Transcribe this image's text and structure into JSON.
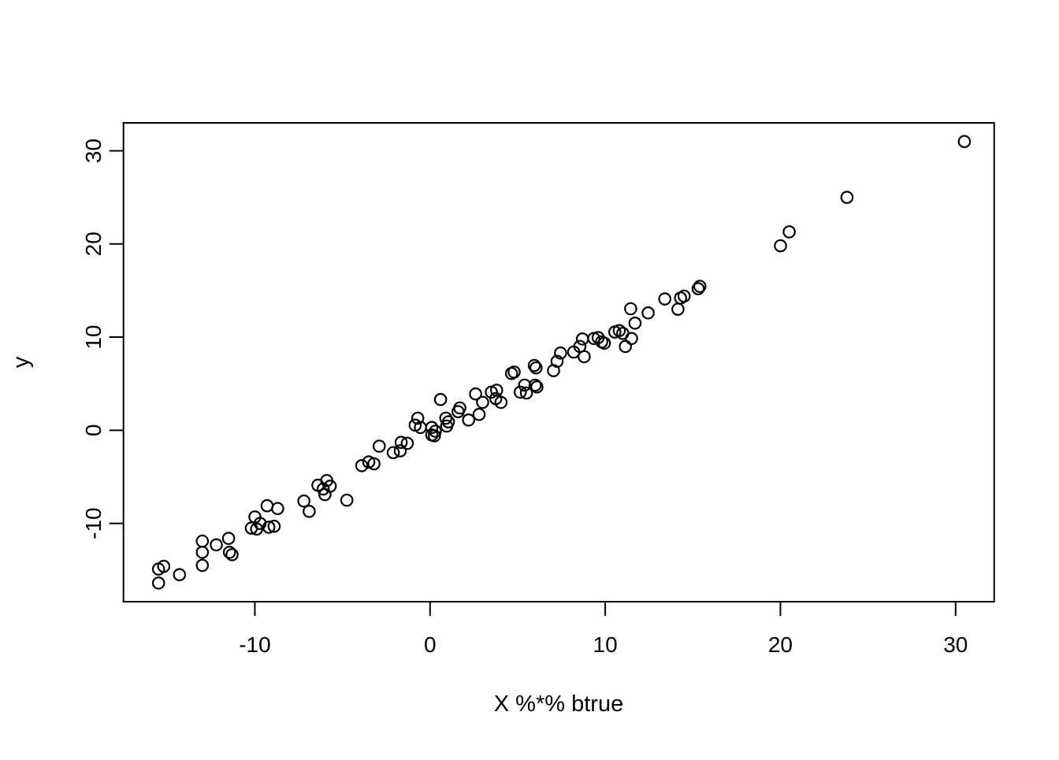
{
  "figure": {
    "background": "#ffffff",
    "axis_color": "#000000",
    "point_color": "#000000"
  },
  "chart_data": {
    "type": "scatter",
    "title": "",
    "xlabel": "X %*% btrue",
    "ylabel": "y",
    "marker": "open-circle",
    "grid": false,
    "legend": false,
    "xlim": [
      -17.5,
      32.2
    ],
    "ylim": [
      -18.4,
      33.0
    ],
    "x_ticks": [
      -10,
      0,
      10,
      20,
      30
    ],
    "y_ticks": [
      -10,
      0,
      10,
      20,
      30
    ],
    "points": [
      [
        -15.5,
        -14.9
      ],
      [
        -15.2,
        -14.6
      ],
      [
        -15.5,
        -16.4
      ],
      [
        -14.3,
        -15.5
      ],
      [
        -13.0,
        -11.9
      ],
      [
        -13.0,
        -13.1
      ],
      [
        -13.0,
        -14.5
      ],
      [
        -12.2,
        -12.3
      ],
      [
        -11.5,
        -11.6
      ],
      [
        -11.45,
        -13.1
      ],
      [
        -11.3,
        -13.35
      ],
      [
        -10.2,
        -10.5
      ],
      [
        -9.9,
        -10.6
      ],
      [
        -10.0,
        -9.3
      ],
      [
        -9.7,
        -10.0
      ],
      [
        -9.3,
        -8.1
      ],
      [
        -8.7,
        -8.4
      ],
      [
        -9.2,
        -10.4
      ],
      [
        -8.9,
        -10.3
      ],
      [
        -7.2,
        -7.6
      ],
      [
        -6.9,
        -8.7
      ],
      [
        -6.4,
        -5.9
      ],
      [
        -5.9,
        -5.4
      ],
      [
        -6.1,
        -6.3
      ],
      [
        -5.7,
        -6.0
      ],
      [
        -6.0,
        -6.9
      ],
      [
        -4.75,
        -7.5
      ],
      [
        -3.9,
        -3.8
      ],
      [
        -3.5,
        -3.4
      ],
      [
        -3.2,
        -3.6
      ],
      [
        -2.9,
        -1.7
      ],
      [
        -2.1,
        -2.4
      ],
      [
        -1.7,
        -2.2
      ],
      [
        -1.65,
        -1.3
      ],
      [
        -1.3,
        -1.4
      ],
      [
        -0.7,
        1.3
      ],
      [
        -0.85,
        0.55
      ],
      [
        -0.55,
        0.3
      ],
      [
        0.1,
        0.3
      ],
      [
        0.3,
        -0.1
      ],
      [
        0.1,
        -0.5
      ],
      [
        0.25,
        -0.6
      ],
      [
        0.6,
        3.3
      ],
      [
        0.9,
        1.3
      ],
      [
        1.05,
        0.9
      ],
      [
        0.95,
        0.45
      ],
      [
        1.7,
        2.4
      ],
      [
        1.6,
        2.0
      ],
      [
        2.2,
        1.1
      ],
      [
        2.8,
        1.7
      ],
      [
        2.6,
        3.9
      ],
      [
        3.0,
        3.0
      ],
      [
        3.5,
        4.1
      ],
      [
        3.8,
        4.3
      ],
      [
        3.75,
        3.4
      ],
      [
        4.05,
        3.0
      ],
      [
        4.65,
        6.1
      ],
      [
        4.8,
        6.25
      ],
      [
        5.4,
        4.85
      ],
      [
        5.15,
        4.1
      ],
      [
        5.5,
        4.0
      ],
      [
        5.95,
        6.95
      ],
      [
        6.05,
        6.7
      ],
      [
        6.0,
        4.85
      ],
      [
        6.1,
        4.65
      ],
      [
        7.05,
        6.4
      ],
      [
        7.25,
        7.4
      ],
      [
        7.45,
        8.3
      ],
      [
        8.2,
        8.4
      ],
      [
        8.55,
        9.0
      ],
      [
        8.7,
        9.8
      ],
      [
        8.8,
        7.9
      ],
      [
        9.35,
        9.85
      ],
      [
        9.6,
        9.95
      ],
      [
        9.8,
        9.5
      ],
      [
        9.95,
        9.35
      ],
      [
        10.55,
        10.55
      ],
      [
        10.8,
        10.7
      ],
      [
        11.0,
        10.4
      ],
      [
        11.5,
        9.85
      ],
      [
        11.15,
        9.0
      ],
      [
        11.45,
        13.05
      ],
      [
        11.7,
        11.5
      ],
      [
        12.45,
        12.6
      ],
      [
        13.4,
        14.1
      ],
      [
        14.3,
        14.2
      ],
      [
        14.5,
        14.4
      ],
      [
        14.15,
        13.0
      ],
      [
        15.3,
        15.2
      ],
      [
        15.4,
        15.45
      ],
      [
        20.0,
        19.8
      ],
      [
        20.5,
        21.3
      ],
      [
        23.8,
        25.0
      ],
      [
        30.5,
        31.0
      ]
    ]
  }
}
